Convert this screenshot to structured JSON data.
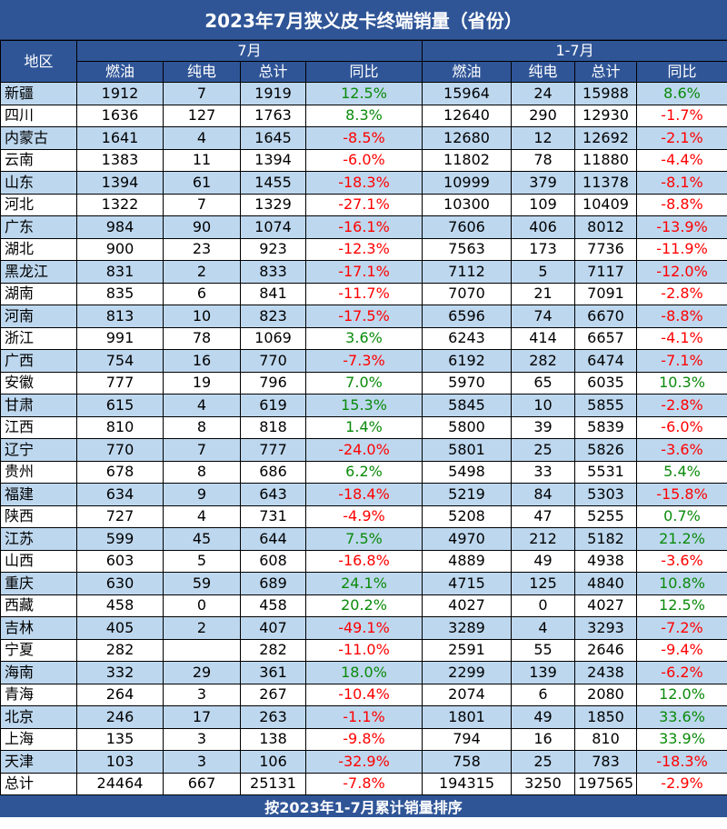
{
  "title": "2023年7月狭义皮卡终端销量（省份）",
  "footer": "按2023年1-7月累计销量排序",
  "colors": {
    "header_bg": "#2f5597",
    "stripe": "#bdd7ee",
    "positive": "#0a8a0a",
    "negative": "#ff0000"
  },
  "header": {
    "region": "地区",
    "group_jul": "7月",
    "group_ytd": "1-7月",
    "cols": [
      "燃油",
      "纯电",
      "总计",
      "同比",
      "燃油",
      "纯电",
      "总计",
      "同比"
    ]
  },
  "rows": [
    [
      "新疆",
      "1912",
      "7",
      "1919",
      "12.5%",
      "15964",
      "24",
      "15988",
      "8.6%"
    ],
    [
      "四川",
      "1636",
      "127",
      "1763",
      "8.3%",
      "12640",
      "290",
      "12930",
      "-1.7%"
    ],
    [
      "内蒙古",
      "1641",
      "4",
      "1645",
      "-8.5%",
      "12680",
      "12",
      "12692",
      "-2.1%"
    ],
    [
      "云南",
      "1383",
      "11",
      "1394",
      "-6.0%",
      "11802",
      "78",
      "11880",
      "-4.4%"
    ],
    [
      "山东",
      "1394",
      "61",
      "1455",
      "-18.3%",
      "10999",
      "379",
      "11378",
      "-8.1%"
    ],
    [
      "河北",
      "1322",
      "7",
      "1329",
      "-27.1%",
      "10300",
      "109",
      "10409",
      "-8.8%"
    ],
    [
      "广东",
      "984",
      "90",
      "1074",
      "-16.1%",
      "7606",
      "406",
      "8012",
      "-13.9%"
    ],
    [
      "湖北",
      "900",
      "23",
      "923",
      "-12.3%",
      "7563",
      "173",
      "7736",
      "-11.9%"
    ],
    [
      "黑龙江",
      "831",
      "2",
      "833",
      "-17.1%",
      "7112",
      "5",
      "7117",
      "-12.0%"
    ],
    [
      "湖南",
      "835",
      "6",
      "841",
      "-11.7%",
      "7070",
      "21",
      "7091",
      "-2.8%"
    ],
    [
      "河南",
      "813",
      "10",
      "823",
      "-17.5%",
      "6596",
      "74",
      "6670",
      "-8.8%"
    ],
    [
      "浙江",
      "991",
      "78",
      "1069",
      "3.6%",
      "6243",
      "414",
      "6657",
      "-4.1%"
    ],
    [
      "广西",
      "754",
      "16",
      "770",
      "-7.3%",
      "6192",
      "282",
      "6474",
      "-7.1%"
    ],
    [
      "安徽",
      "777",
      "19",
      "796",
      "7.0%",
      "5970",
      "65",
      "6035",
      "10.3%"
    ],
    [
      "甘肃",
      "615",
      "4",
      "619",
      "15.3%",
      "5845",
      "10",
      "5855",
      "-2.8%"
    ],
    [
      "江西",
      "810",
      "8",
      "818",
      "1.4%",
      "5800",
      "39",
      "5839",
      "-6.0%"
    ],
    [
      "辽宁",
      "770",
      "7",
      "777",
      "-24.0%",
      "5801",
      "25",
      "5826",
      "-3.6%"
    ],
    [
      "贵州",
      "678",
      "8",
      "686",
      "6.2%",
      "5498",
      "33",
      "5531",
      "5.4%"
    ],
    [
      "福建",
      "634",
      "9",
      "643",
      "-18.4%",
      "5219",
      "84",
      "5303",
      "-15.8%"
    ],
    [
      "陕西",
      "727",
      "4",
      "731",
      "-4.9%",
      "5208",
      "47",
      "5255",
      "0.7%"
    ],
    [
      "江苏",
      "599",
      "45",
      "644",
      "7.5%",
      "4970",
      "212",
      "5182",
      "21.2%"
    ],
    [
      "山西",
      "603",
      "5",
      "608",
      "-16.8%",
      "4889",
      "49",
      "4938",
      "-3.6%"
    ],
    [
      "重庆",
      "630",
      "59",
      "689",
      "24.1%",
      "4715",
      "125",
      "4840",
      "10.8%"
    ],
    [
      "西藏",
      "458",
      "0",
      "458",
      "20.2%",
      "4027",
      "0",
      "4027",
      "12.5%"
    ],
    [
      "吉林",
      "405",
      "2",
      "407",
      "-49.1%",
      "3289",
      "4",
      "3293",
      "-7.2%"
    ],
    [
      "宁夏",
      "282",
      "",
      "282",
      "-11.0%",
      "2591",
      "55",
      "2646",
      "-9.4%"
    ],
    [
      "海南",
      "332",
      "29",
      "361",
      "18.0%",
      "2299",
      "139",
      "2438",
      "-6.2%"
    ],
    [
      "青海",
      "264",
      "3",
      "267",
      "-10.4%",
      "2074",
      "6",
      "2080",
      "12.0%"
    ],
    [
      "北京",
      "246",
      "17",
      "263",
      "-1.1%",
      "1801",
      "49",
      "1850",
      "33.6%"
    ],
    [
      "上海",
      "135",
      "3",
      "138",
      "-9.8%",
      "794",
      "16",
      "810",
      "33.9%"
    ],
    [
      "天津",
      "103",
      "3",
      "106",
      "-32.9%",
      "758",
      "25",
      "783",
      "-18.3%"
    ]
  ],
  "total": [
    "总计",
    "24464",
    "667",
    "25131",
    "-7.8%",
    "194315",
    "3250",
    "197565",
    "-2.9%"
  ]
}
